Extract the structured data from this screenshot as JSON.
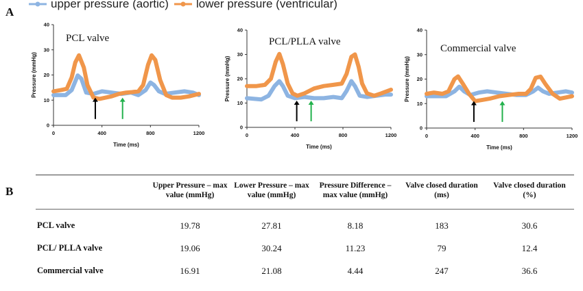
{
  "panel_a_label": "A",
  "panel_b_label": "B",
  "legend": {
    "upper": {
      "label": "upper pressure (aortic)",
      "color": "#8db4e2"
    },
    "lower": {
      "label": "lower pressure (ventricular)",
      "color": "#f0964a"
    }
  },
  "chart_data": [
    {
      "type": "line",
      "title": "PCL valve",
      "xlabel": "Time (ms)",
      "ylabel": "Pressure (mmHg)",
      "xlim": [
        0,
        1200
      ],
      "ylim": [
        0,
        40
      ],
      "xticks": [
        0,
        400,
        800,
        1200
      ],
      "yticks": [
        0,
        10,
        20,
        30,
        40
      ],
      "grid": false,
      "series": [
        {
          "name": "upper pressure (aortic)",
          "color": "#8db4e2",
          "x": [
            0,
            100,
            150,
            200,
            230,
            270,
            330,
            400,
            480,
            560,
            640,
            700,
            760,
            800,
            830,
            870,
            920,
            1000,
            1080,
            1150,
            1200
          ],
          "y": [
            12,
            12,
            14,
            19.8,
            18.5,
            13,
            12.5,
            13.5,
            13,
            12.5,
            13,
            12,
            14,
            17,
            16,
            13.5,
            12.5,
            13,
            13.5,
            13,
            12
          ]
        },
        {
          "name": "lower pressure (ventricular)",
          "color": "#f0964a",
          "x": [
            0,
            60,
            110,
            150,
            180,
            210,
            250,
            280,
            330,
            380,
            430,
            480,
            540,
            600,
            650,
            700,
            740,
            780,
            810,
            840,
            880,
            930,
            980,
            1050,
            1120,
            1200
          ],
          "y": [
            13.5,
            14,
            14.5,
            19,
            25,
            27.8,
            23,
            16,
            11,
            10.5,
            11,
            11.5,
            12.5,
            13,
            13.2,
            13.5,
            16,
            24,
            27.8,
            26,
            18,
            12,
            11,
            11,
            11.5,
            12.5
          ]
        }
      ],
      "arrows": [
        {
          "x": 345,
          "color": "#000000"
        },
        {
          "x": 570,
          "color": "#22b14c"
        }
      ]
    },
    {
      "type": "line",
      "title": "PCL/PLLA valve",
      "xlabel": "Time (ms)",
      "ylabel": "Pressure (mmHg)",
      "xlim": [
        0,
        1200
      ],
      "ylim": [
        0,
        40
      ],
      "xticks": [
        0,
        400,
        800,
        1200
      ],
      "yticks": [
        0,
        10,
        20,
        30,
        40
      ],
      "grid": false,
      "series": [
        {
          "name": "upper pressure (aortic)",
          "color": "#8db4e2",
          "x": [
            0,
            120,
            180,
            230,
            270,
            300,
            340,
            400,
            480,
            560,
            640,
            720,
            790,
            830,
            870,
            900,
            940,
            1000,
            1080,
            1150,
            1200
          ],
          "y": [
            12,
            11.5,
            13,
            17,
            19,
            17,
            13,
            12,
            12.5,
            12,
            12,
            12.5,
            12,
            15,
            19,
            17,
            13,
            12.5,
            13,
            13.5,
            13.5
          ]
        },
        {
          "name": "lower pressure (ventricular)",
          "color": "#f0964a",
          "x": [
            0,
            80,
            150,
            200,
            240,
            270,
            300,
            340,
            380,
            420,
            480,
            560,
            640,
            720,
            790,
            830,
            870,
            900,
            930,
            960,
            1000,
            1060,
            1120,
            1200
          ],
          "y": [
            17,
            17,
            17.5,
            20,
            27,
            30.2,
            26,
            18,
            14,
            13,
            14,
            16,
            17,
            17.5,
            18,
            22,
            29,
            30,
            25,
            18,
            14,
            13,
            14,
            15.5
          ]
        }
      ],
      "arrows": [
        {
          "x": 415,
          "color": "#000000"
        },
        {
          "x": 535,
          "color": "#22b14c"
        }
      ]
    },
    {
      "type": "line",
      "title": "Commercial valve",
      "xlabel": "Time (ms)",
      "ylabel": "Pressure (mmHg)",
      "xlim": [
        0,
        1200
      ],
      "ylim": [
        0,
        40
      ],
      "xticks": [
        0,
        400,
        800,
        1200
      ],
      "yticks": [
        0,
        10,
        20,
        30,
        40
      ],
      "grid": false,
      "series": [
        {
          "name": "upper pressure (aortic)",
          "color": "#8db4e2",
          "x": [
            0,
            80,
            160,
            230,
            270,
            310,
            360,
            430,
            500,
            580,
            660,
            740,
            820,
            880,
            920,
            960,
            1010,
            1080,
            1150,
            1200
          ],
          "y": [
            13,
            13,
            13,
            15,
            16.9,
            15,
            13.5,
            14.5,
            15,
            14.5,
            14,
            13.5,
            13.5,
            15,
            16.5,
            15,
            14,
            14.5,
            15,
            14.5
          ]
        },
        {
          "name": "lower pressure (ventricular)",
          "color": "#f0964a",
          "x": [
            0,
            60,
            130,
            180,
            230,
            260,
            300,
            350,
            400,
            460,
            520,
            600,
            680,
            760,
            820,
            860,
            900,
            940,
            980,
            1040,
            1100,
            1150,
            1200
          ],
          "y": [
            14,
            14.5,
            14,
            15,
            20,
            21.1,
            18,
            14,
            11,
            11.5,
            12,
            13,
            13.5,
            14,
            14,
            16,
            20.5,
            21,
            18,
            14,
            12,
            12.5,
            13
          ]
        }
      ],
      "arrows": [
        {
          "x": 390,
          "color": "#000000"
        },
        {
          "x": 625,
          "color": "#22b14c"
        }
      ]
    }
  ],
  "table": {
    "headers": [
      "",
      "Upper Pressure – max value (mmHg)",
      "Lower Pressure – max value (mmHg)",
      "Pressure Difference – max value (mmHg)",
      "Valve closed duration (ms)",
      "Valve closed duration (%)"
    ],
    "rows": [
      [
        "PCL valve",
        "19.78",
        "27.81",
        "8.18",
        "183",
        "30.6"
      ],
      [
        "PCL/ PLLA valve",
        "19.06",
        "30.24",
        "11.23",
        "79",
        "12.4"
      ],
      [
        "Commercial valve",
        "16.91",
        "21.08",
        "4.44",
        "247",
        "36.6"
      ]
    ]
  }
}
